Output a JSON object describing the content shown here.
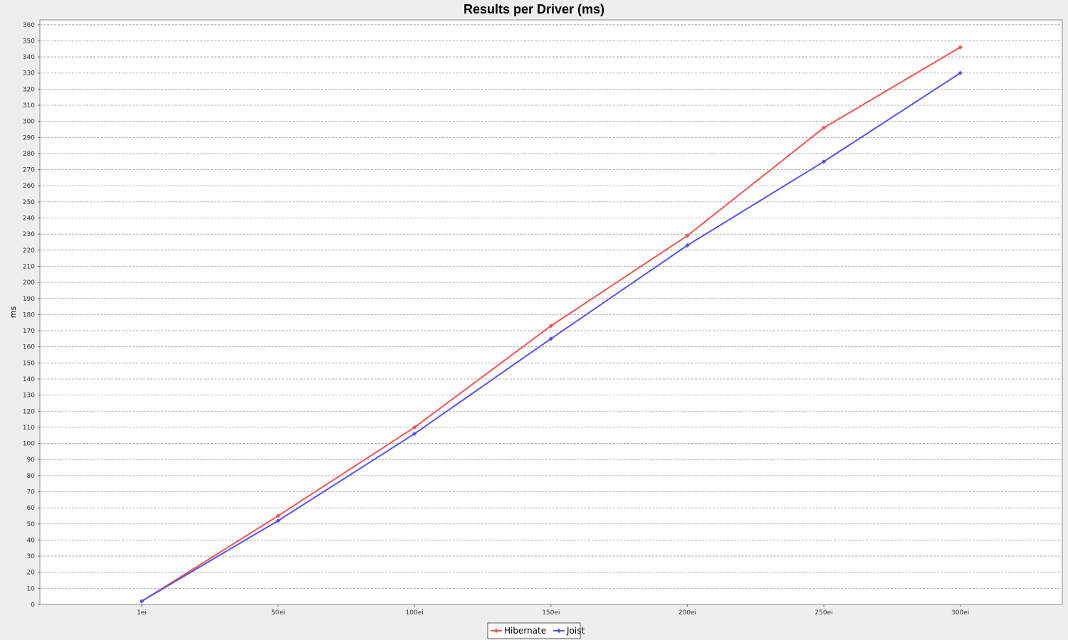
{
  "chart_data": {
    "type": "line",
    "title": "Results per Driver (ms)",
    "xlabel": "",
    "ylabel": "ms",
    "categories": [
      "1ei",
      "50ei",
      "100ei",
      "150ei",
      "200ei",
      "250ei",
      "300ei"
    ],
    "series": [
      {
        "name": "Hibernate",
        "color": "#ee5555",
        "values": [
          2,
          55,
          110,
          173,
          229,
          296,
          346
        ]
      },
      {
        "name": "Joist",
        "color": "#5555ee",
        "values": [
          2,
          52,
          106,
          165,
          223,
          275,
          330
        ]
      }
    ],
    "ylim": [
      0,
      363
    ],
    "yticks": [
      0,
      10,
      20,
      30,
      40,
      50,
      60,
      70,
      80,
      90,
      100,
      110,
      120,
      130,
      140,
      150,
      160,
      170,
      180,
      190,
      200,
      210,
      220,
      230,
      240,
      250,
      260,
      270,
      280,
      290,
      300,
      310,
      320,
      330,
      340,
      350,
      360
    ],
    "grid": true,
    "legend": "bottom-center"
  }
}
